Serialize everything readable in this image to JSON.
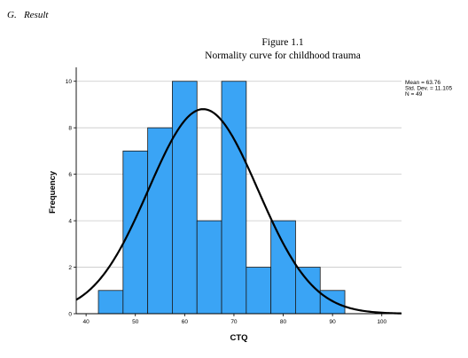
{
  "section": {
    "heading": "G.   Result"
  },
  "figure": {
    "label": "Figure 1.1",
    "title": "Normality curve for childhood trauma"
  },
  "chart_data": {
    "type": "bar",
    "subtype": "histogram-with-normal-curve",
    "xlabel": "CTQ",
    "ylabel": "Frequency",
    "xlim": [
      38,
      104
    ],
    "ylim": [
      0,
      10.6
    ],
    "x_ticks": [
      40,
      50,
      60,
      70,
      80,
      90,
      100
    ],
    "y_ticks": [
      0,
      2,
      4,
      6,
      8,
      10
    ],
    "bin_width": 5,
    "bins": [
      {
        "start": 42.5,
        "end": 47.5,
        "count": 1
      },
      {
        "start": 47.5,
        "end": 52.5,
        "count": 7
      },
      {
        "start": 52.5,
        "end": 57.5,
        "count": 8
      },
      {
        "start": 57.5,
        "end": 62.5,
        "count": 10
      },
      {
        "start": 62.5,
        "end": 67.5,
        "count": 4
      },
      {
        "start": 67.5,
        "end": 72.5,
        "count": 10
      },
      {
        "start": 72.5,
        "end": 77.5,
        "count": 2
      },
      {
        "start": 77.5,
        "end": 82.5,
        "count": 4
      },
      {
        "start": 82.5,
        "end": 87.5,
        "count": 2
      },
      {
        "start": 87.5,
        "end": 92.5,
        "count": 1
      }
    ],
    "normal_curve": {
      "mean": 63.76,
      "sd": 11.105,
      "n": 49
    },
    "stats_text": [
      "Mean = 63.76",
      "Std. Dev. = 11.105",
      "N = 49"
    ],
    "grid": "horizontal",
    "legend_position": "top-right",
    "colors": {
      "bar_fill": "#3aa4f5",
      "bar_stroke": "#1a1a1a",
      "curve": "#000000",
      "grid": "#c8c8c8"
    }
  }
}
